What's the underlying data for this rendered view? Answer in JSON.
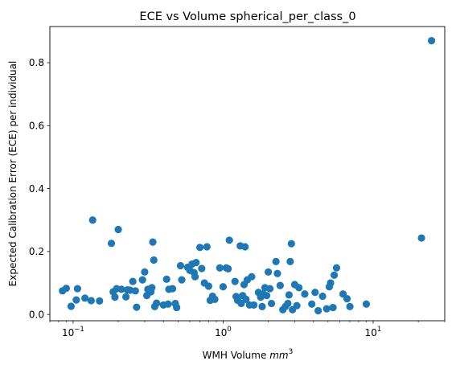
{
  "chart_data": {
    "type": "scatter",
    "title": "ECE vs Volume spherical_per_class_0",
    "xlabel_text": "WMH Volume ",
    "xlabel_unit": "mm",
    "xlabel_exp": "3",
    "ylabel": "Expected Calibration Error (ECE) per individual",
    "xscale": "log",
    "xlim": [
      0.07,
      30
    ],
    "ylim": [
      -0.02,
      0.915
    ],
    "x_ticks": [
      {
        "value": 0.1,
        "base": "10",
        "exp": "−1"
      },
      {
        "value": 1,
        "base": "10",
        "exp": "0"
      },
      {
        "value": 10,
        "base": "10",
        "exp": "1"
      }
    ],
    "y_ticks": [
      {
        "value": 0.0,
        "label": "0.0"
      },
      {
        "value": 0.2,
        "label": "0.2"
      },
      {
        "value": 0.4,
        "label": "0.4"
      },
      {
        "value": 0.6,
        "label": "0.6"
      },
      {
        "value": 0.8,
        "label": "0.8"
      }
    ],
    "grid": false,
    "marker_color": "#1f77b4",
    "points": [
      [
        0.085,
        0.075
      ],
      [
        0.09,
        0.083
      ],
      [
        0.097,
        0.026
      ],
      [
        0.105,
        0.046
      ],
      [
        0.107,
        0.082
      ],
      [
        0.12,
        0.052
      ],
      [
        0.132,
        0.044
      ],
      [
        0.135,
        0.3
      ],
      [
        0.15,
        0.043
      ],
      [
        0.18,
        0.226
      ],
      [
        0.185,
        0.072
      ],
      [
        0.19,
        0.055
      ],
      [
        0.195,
        0.082
      ],
      [
        0.2,
        0.27
      ],
      [
        0.21,
        0.08
      ],
      [
        0.225,
        0.056
      ],
      [
        0.23,
        0.078
      ],
      [
        0.24,
        0.077
      ],
      [
        0.25,
        0.105
      ],
      [
        0.26,
        0.075
      ],
      [
        0.265,
        0.023
      ],
      [
        0.29,
        0.11
      ],
      [
        0.3,
        0.135
      ],
      [
        0.31,
        0.06
      ],
      [
        0.315,
        0.08
      ],
      [
        0.33,
        0.072
      ],
      [
        0.335,
        0.085
      ],
      [
        0.34,
        0.23
      ],
      [
        0.345,
        0.173
      ],
      [
        0.35,
        0.025
      ],
      [
        0.36,
        0.036
      ],
      [
        0.4,
        0.03
      ],
      [
        0.42,
        0.112
      ],
      [
        0.43,
        0.033
      ],
      [
        0.435,
        0.08
      ],
      [
        0.46,
        0.082
      ],
      [
        0.48,
        0.035
      ],
      [
        0.49,
        0.022
      ],
      [
        0.52,
        0.155
      ],
      [
        0.53,
        0.11
      ],
      [
        0.58,
        0.15
      ],
      [
        0.6,
        0.14
      ],
      [
        0.62,
        0.16
      ],
      [
        0.64,
        0.133
      ],
      [
        0.65,
        0.12
      ],
      [
        0.66,
        0.165
      ],
      [
        0.7,
        0.213
      ],
      [
        0.72,
        0.146
      ],
      [
        0.75,
        0.1
      ],
      [
        0.78,
        0.215
      ],
      [
        0.8,
        0.09
      ],
      [
        0.82,
        0.045
      ],
      [
        0.85,
        0.058
      ],
      [
        0.88,
        0.048
      ],
      [
        0.95,
        0.148
      ],
      [
        1.0,
        0.088
      ],
      [
        1.05,
        0.148
      ],
      [
        1.08,
        0.145
      ],
      [
        1.1,
        0.236
      ],
      [
        1.2,
        0.105
      ],
      [
        1.22,
        0.057
      ],
      [
        1.25,
        0.045
      ],
      [
        1.3,
        0.218
      ],
      [
        1.32,
        0.035
      ],
      [
        1.35,
        0.06
      ],
      [
        1.38,
        0.095
      ],
      [
        1.4,
        0.215
      ],
      [
        1.42,
        0.048
      ],
      [
        1.45,
        0.11
      ],
      [
        1.5,
        0.03
      ],
      [
        1.55,
        0.12
      ],
      [
        1.6,
        0.03
      ],
      [
        1.72,
        0.07
      ],
      [
        1.78,
        0.055
      ],
      [
        1.82,
        0.025
      ],
      [
        1.85,
        0.065
      ],
      [
        1.9,
        0.085
      ],
      [
        1.95,
        0.06
      ],
      [
        2.0,
        0.135
      ],
      [
        2.05,
        0.082
      ],
      [
        2.1,
        0.035
      ],
      [
        2.25,
        0.168
      ],
      [
        2.3,
        0.13
      ],
      [
        2.4,
        0.092
      ],
      [
        2.5,
        0.015
      ],
      [
        2.6,
        0.025
      ],
      [
        2.7,
        0.035
      ],
      [
        2.75,
        0.062
      ],
      [
        2.8,
        0.168
      ],
      [
        2.85,
        0.225
      ],
      [
        2.9,
        0.015
      ],
      [
        3.0,
        0.095
      ],
      [
        3.1,
        0.028
      ],
      [
        3.2,
        0.085
      ],
      [
        3.5,
        0.065
      ],
      [
        3.9,
        0.033
      ],
      [
        4.1,
        0.07
      ],
      [
        4.3,
        0.012
      ],
      [
        4.6,
        0.058
      ],
      [
        4.9,
        0.018
      ],
      [
        5.1,
        0.088
      ],
      [
        5.2,
        0.1
      ],
      [
        5.4,
        0.022
      ],
      [
        5.5,
        0.125
      ],
      [
        5.7,
        0.148
      ],
      [
        6.3,
        0.065
      ],
      [
        6.7,
        0.05
      ],
      [
        7.0,
        0.025
      ],
      [
        9.0,
        0.033
      ],
      [
        21,
        0.243
      ],
      [
        24.5,
        0.87
      ]
    ]
  }
}
